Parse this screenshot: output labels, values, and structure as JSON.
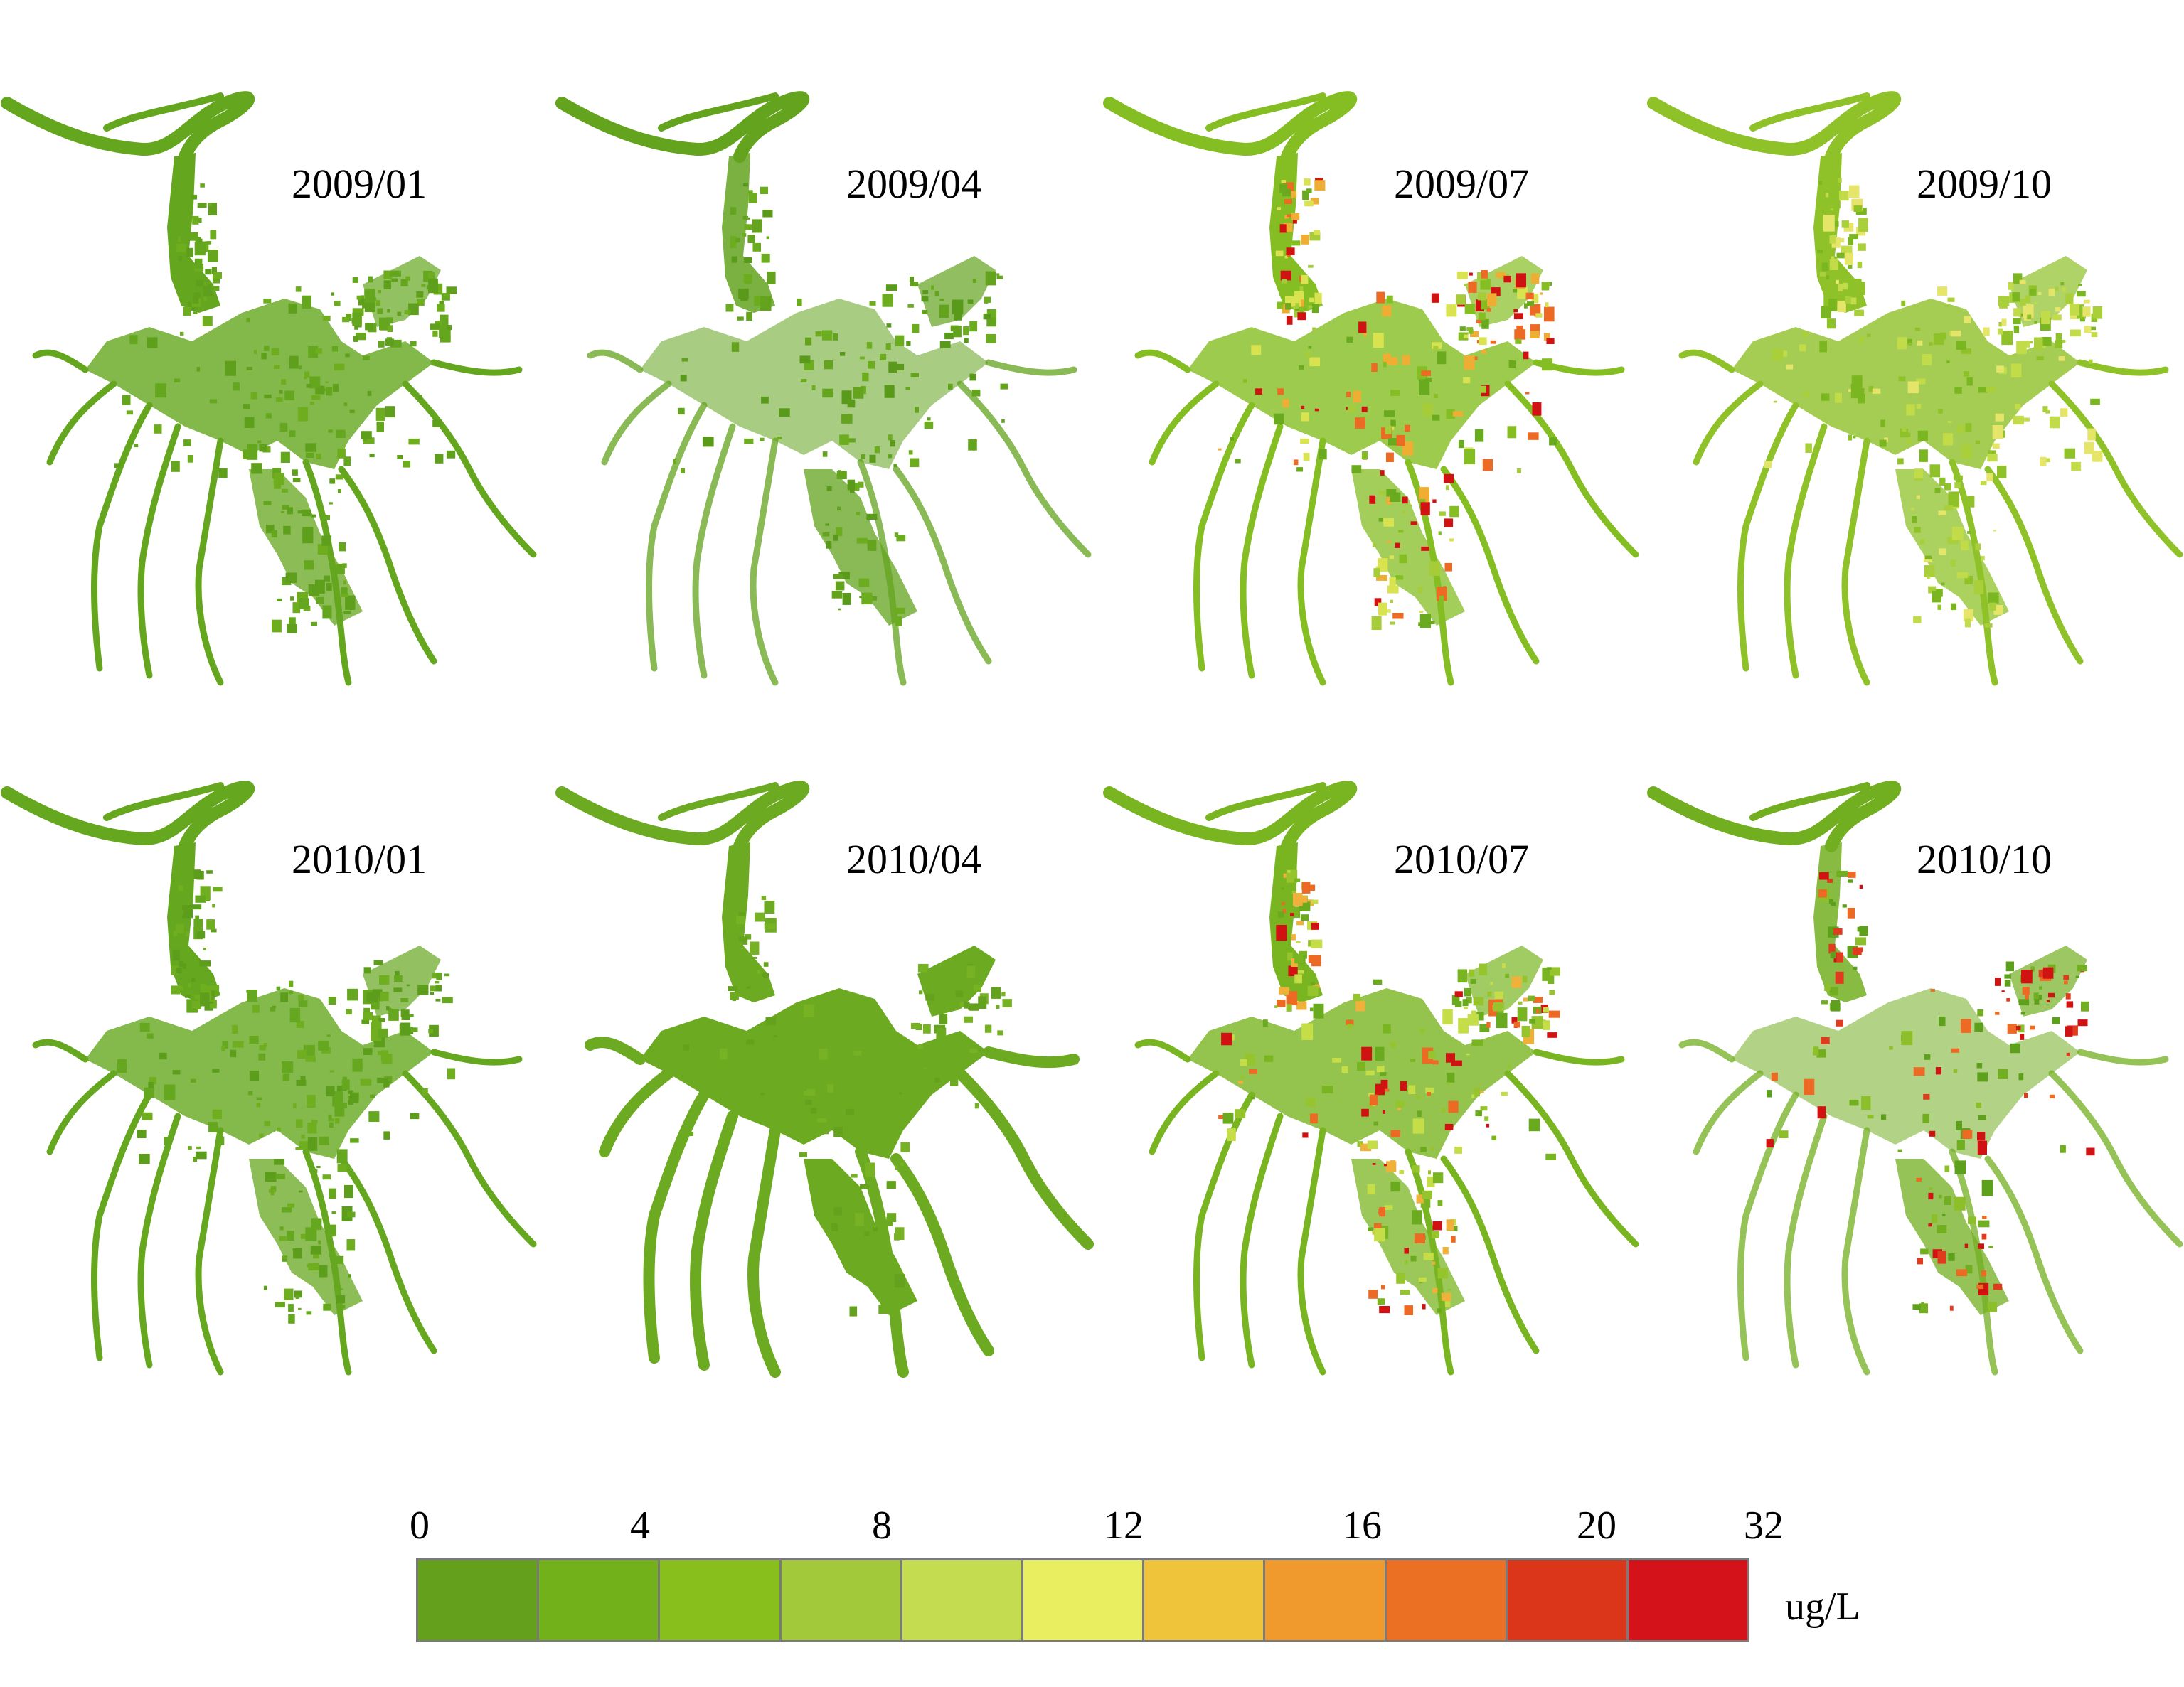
{
  "panels": [
    {
      "date": "2009/01",
      "palette": [
        "#64a61e",
        "#6ead1d",
        "#5e9f1c"
      ]
    },
    {
      "date": "2009/04",
      "palette": [
        "#63a31e",
        "#6cac1f",
        "#5a9a1b"
      ]
    },
    {
      "date": "2009/07",
      "palette": [
        "#84be22",
        "#a6cc3a",
        "#d8e34f",
        "#f0ad34",
        "#ec6a23",
        "#d01212",
        "#6aaa1f"
      ]
    },
    {
      "date": "2009/10",
      "palette": [
        "#8fc128",
        "#a9cf3a",
        "#c2dc49",
        "#7ab620",
        "#e5e56a"
      ]
    },
    {
      "date": "2010/01",
      "palette": [
        "#65a71f",
        "#6fae1f",
        "#5c9e1b"
      ]
    },
    {
      "date": "2010/04",
      "palette": [
        "#6caa22",
        "#64a21d",
        "#76b223"
      ]
    },
    {
      "date": "2010/07",
      "palette": [
        "#79b521",
        "#96c42d",
        "#c5dd47",
        "#f0b13a",
        "#ec6a23",
        "#d01212",
        "#6aaa1f"
      ]
    },
    {
      "date": "2010/10",
      "palette": [
        "#72af20",
        "#8cbf29",
        "#e03a1f",
        "#d01212",
        "#ec6a23",
        "#5da01c"
      ]
    }
  ],
  "legend": {
    "tick_labels": [
      "0",
      "4",
      "8",
      "12",
      "16",
      "20",
      "32"
    ],
    "unit": "ug/L",
    "colors": [
      "#64a01c",
      "#72b11a",
      "#88bf1d",
      "#a1c93a",
      "#c4dc4f",
      "#e9ee60",
      "#f0c43a",
      "#f09a2e",
      "#ec7024",
      "#db3619",
      "#d3121a"
    ]
  }
}
